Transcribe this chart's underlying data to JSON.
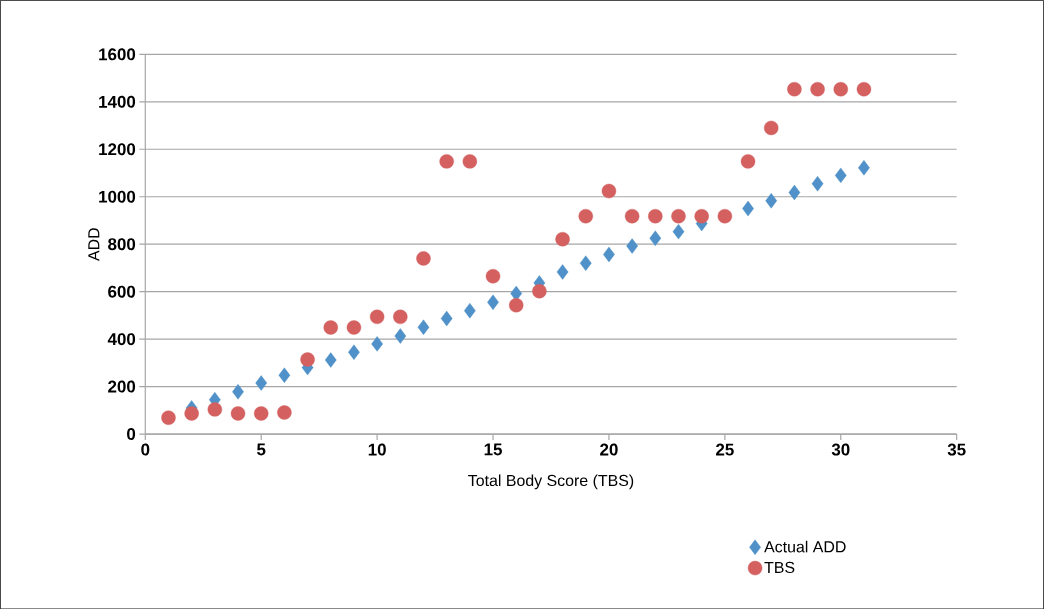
{
  "chart_data": {
    "type": "scatter",
    "xlabel": "Total Body Score (TBS)",
    "ylabel": "ADD",
    "x": [
      1,
      2,
      3,
      4,
      5,
      6,
      7,
      8,
      9,
      10,
      11,
      12,
      13,
      14,
      15,
      16,
      17,
      18,
      19,
      20,
      21,
      22,
      23,
      24,
      25,
      26,
      27,
      28,
      29,
      30,
      31
    ],
    "series": [
      {
        "name": "Actual ADD",
        "color": "#4f91c8",
        "marker": "diamond",
        "values": [
          null,
          110,
          145,
          178,
          215,
          248,
          280,
          312,
          345,
          380,
          413,
          450,
          487,
          520,
          555,
          592,
          637,
          683,
          720,
          757,
          792,
          825,
          853,
          887,
          null,
          950,
          983,
          1018,
          1055,
          1090,
          1122
        ]
      },
      {
        "name": "TBS",
        "color": "#d46060",
        "marker": "circle",
        "values": [
          69,
          87,
          104,
          87,
          87,
          91,
          314,
          449,
          449,
          494,
          494,
          740,
          1149,
          1149,
          665,
          543,
          602,
          821,
          918,
          1024,
          918,
          918,
          918,
          918,
          918,
          1149,
          1290,
          1453,
          1453,
          1453,
          1453
        ]
      }
    ],
    "xlim": [
      0,
      35
    ],
    "xticks": [
      0,
      5,
      10,
      15,
      20,
      25,
      30,
      35
    ],
    "ylim": [
      0,
      1600
    ],
    "yticks": [
      0,
      200,
      400,
      600,
      800,
      1000,
      1200,
      1400,
      1600
    ],
    "grid": "y",
    "legend": "bottom right"
  }
}
